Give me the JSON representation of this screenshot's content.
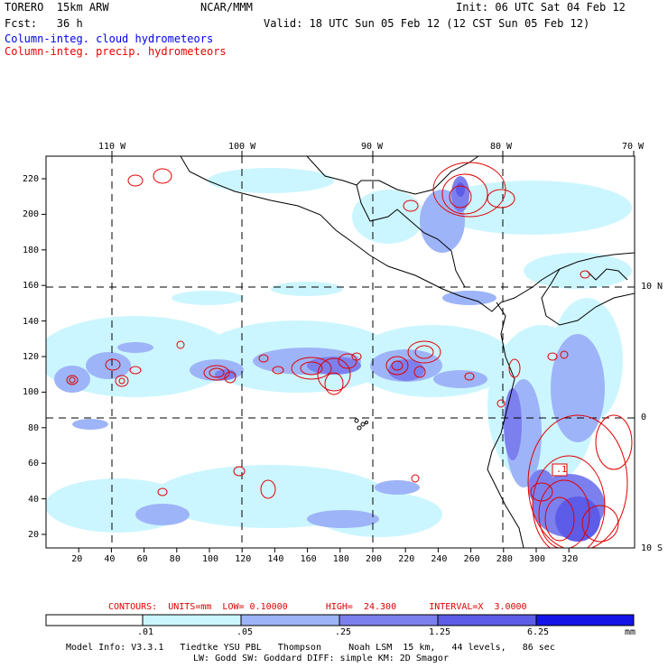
{
  "header": {
    "model": "TORERO  15km ARW",
    "org": "NCAR/MMM",
    "init": "Init: 06 UTC Sat 04 Feb 12",
    "fcst": "Fcst:   36 h",
    "valid": "Valid: 18 UTC Sun 05 Feb 12 (12 CST Sun 05 Feb 12)",
    "field_cloud": "Column-integ. cloud hydrometeors",
    "field_precip": "Column-integ. precip. hydrometeors"
  },
  "colors": {
    "cloud_text": "#0000ee",
    "precip_text": "#ee0000",
    "contour": "#e00000",
    "land": "#000000"
  },
  "axes": {
    "lon_labels": [
      "110 W",
      "100 W",
      "90 W",
      "80 W",
      "70 W"
    ],
    "lat_labels": [
      "10 N",
      "0",
      "10 S"
    ],
    "x_ticks": [
      "20",
      "40",
      "60",
      "80",
      "100",
      "120",
      "140",
      "160",
      "180",
      "200",
      "220",
      "240",
      "260",
      "280",
      "300",
      "320"
    ],
    "y_ticks": [
      "20",
      "40",
      "60",
      "80",
      "100",
      "120",
      "140",
      "160",
      "180",
      "200",
      "220"
    ]
  },
  "contours": {
    "text": "CONTOURS:  UNITS=mm  LOW= 0.10000       HIGH=  24.300      INTERVAL=X  3.0000",
    "box_label": ".1"
  },
  "colorbar": {
    "labels": [
      ".01",
      ".05",
      ".25",
      "1.25",
      "6.25"
    ],
    "unit": "mm",
    "colors": [
      "#ffffff",
      "#ccf6ff",
      "#9eb4f8",
      "#7c80ee",
      "#5d5ce8",
      "#1414e6"
    ]
  },
  "footer": {
    "line1": "Model Info: V3.3.1   Tiedtke YSU PBL   Thompson     Noah LSM  15 km,   44 levels,   86 sec",
    "line2": "LW: Godd SW: Goddard DIFF: simple KM: 2D Smagor"
  }
}
